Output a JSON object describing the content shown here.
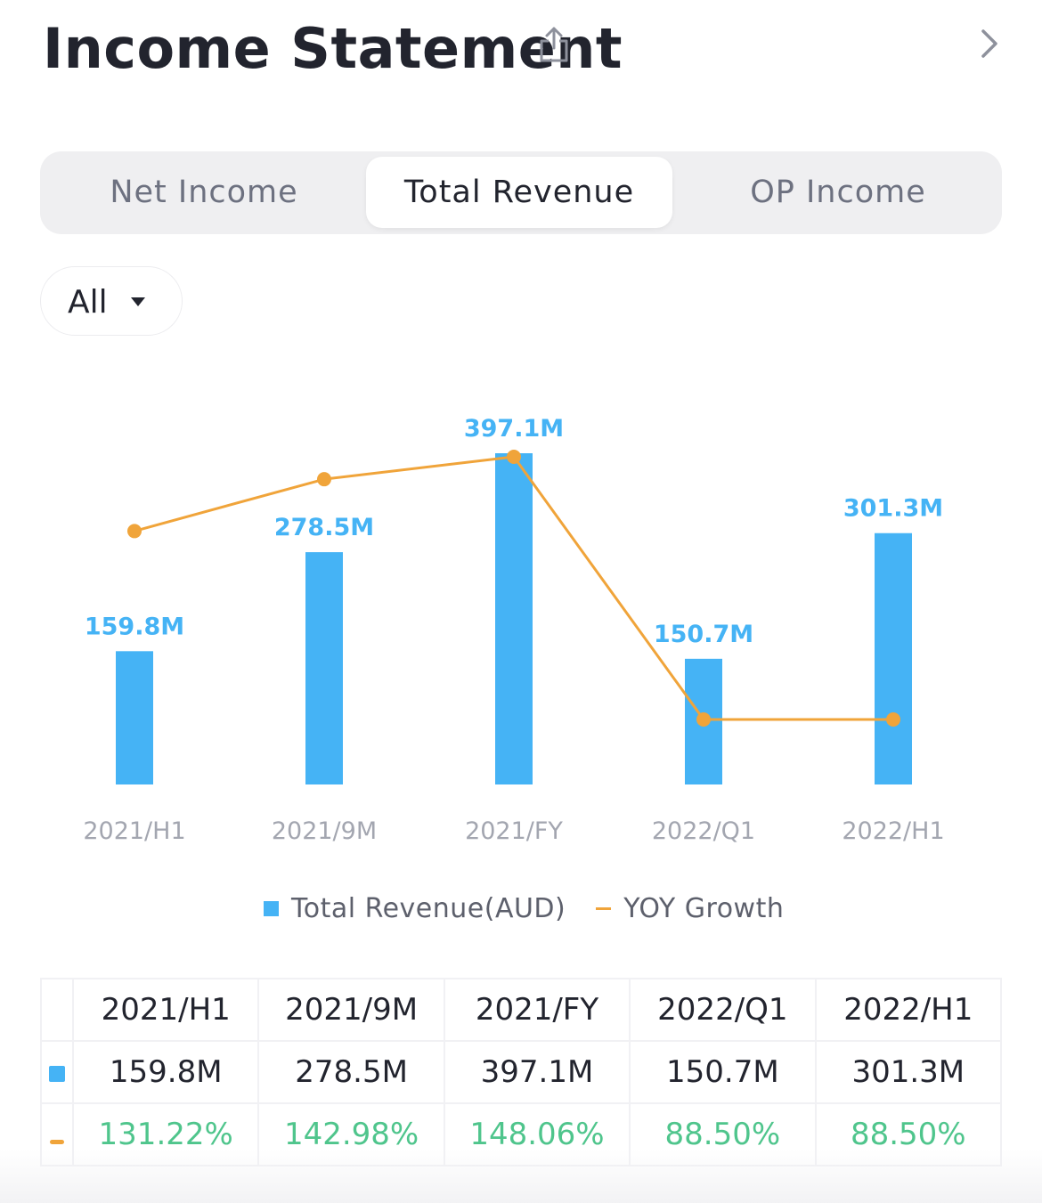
{
  "header": {
    "title": "Income Statement"
  },
  "tabs": [
    {
      "label": "Net Income",
      "active": false
    },
    {
      "label": "Total Revenue",
      "active": true
    },
    {
      "label": "OP Income",
      "active": false
    }
  ],
  "period_filter": {
    "value": "All"
  },
  "legend": {
    "bar_label": "Total Revenue(AUD)",
    "line_label": "YOY Growth"
  },
  "colors": {
    "bar": "#45b3f5",
    "line": "#f0a43a",
    "growth_text": "#4fc58c",
    "axis_label": "#a3a6b0"
  },
  "chart_data": {
    "type": "bar",
    "categories": [
      "2021/H1",
      "2021/9M",
      "2021/FY",
      "2022/Q1",
      "2022/H1"
    ],
    "series": [
      {
        "name": "Total Revenue(AUD)",
        "type": "bar",
        "values": [
          159.8,
          278.5,
          397.1,
          150.7,
          301.3
        ],
        "labels": [
          "159.8M",
          "278.5M",
          "397.1M",
          "150.7M",
          "301.3M"
        ]
      },
      {
        "name": "YOY Growth",
        "type": "line",
        "values": [
          131.22,
          142.98,
          148.06,
          88.5,
          88.5
        ]
      }
    ]
  },
  "table": {
    "headers": [
      "2021/H1",
      "2021/9M",
      "2021/FY",
      "2022/Q1",
      "2022/H1"
    ],
    "revenue_row": [
      "159.8M",
      "278.5M",
      "397.1M",
      "150.7M",
      "301.3M"
    ],
    "growth_row": [
      "131.22%",
      "142.98%",
      "148.06%",
      "88.50%",
      "88.50%"
    ]
  }
}
